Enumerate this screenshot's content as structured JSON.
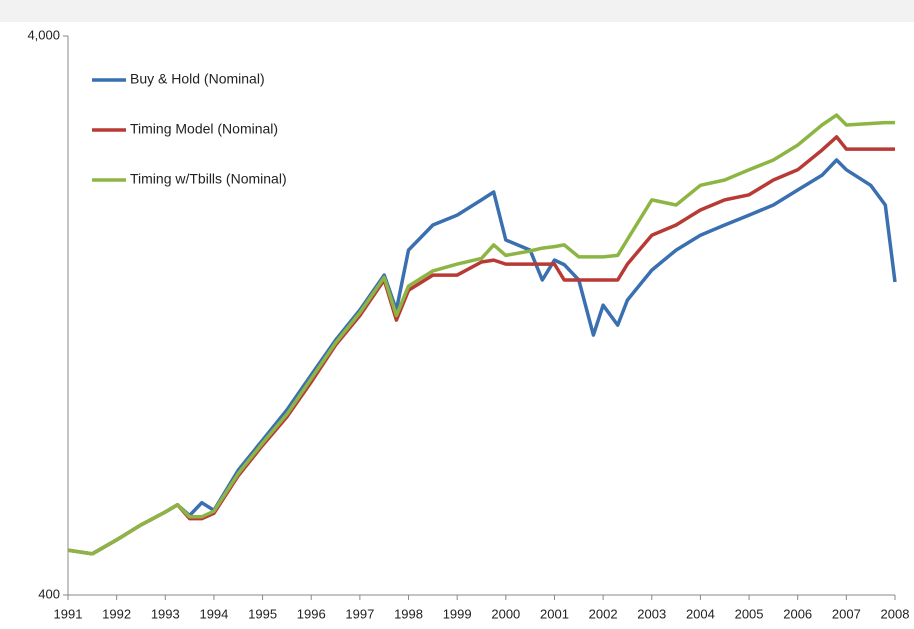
{
  "chart_data": {
    "type": "line",
    "x": [
      1991,
      1991.5,
      1992,
      1992.5,
      1993,
      1993.25,
      1993.5,
      1993.75,
      1994,
      1994.5,
      1995,
      1995.5,
      1996,
      1996.5,
      1997,
      1997.5,
      1997.75,
      1998,
      1998.5,
      1999,
      1999.5,
      1999.75,
      2000,
      2000.5,
      2000.75,
      2001,
      2001.2,
      2001.5,
      2001.8,
      2002,
      2002.3,
      2002.5,
      2003,
      2003.5,
      2004,
      2004.5,
      2005,
      2005.5,
      2006,
      2006.5,
      2006.8,
      2007,
      2007.5,
      2007.8,
      2008
    ],
    "series": [
      {
        "name": "Buy & Hold (Nominal)",
        "color": "#3a6fb0",
        "values": [
          481,
          474,
          502,
          534,
          563,
          580,
          555,
          585,
          567,
          669,
          757,
          857,
          990,
          1143,
          1294,
          1494,
          1294,
          1656,
          1836,
          1913,
          2036,
          2104,
          1726,
          1656,
          1464,
          1589,
          1560,
          1464,
          1167,
          1320,
          1216,
          1348,
          1525,
          1656,
          1761,
          1836,
          1913,
          1994,
          2121,
          2254,
          2400,
          2305,
          2163,
          1994,
          1452
        ]
      },
      {
        "name": "Timing Model (Nominal)",
        "color": "#b83a35",
        "values": [
          481,
          474,
          502,
          534,
          563,
          580,
          548,
          548,
          560,
          654,
          741,
          833,
          962,
          1120,
          1265,
          1464,
          1241,
          1403,
          1494,
          1494,
          1577,
          1589,
          1563,
          1563,
          1563,
          1563,
          1464,
          1464,
          1464,
          1464,
          1464,
          1563,
          1761,
          1836,
          1953,
          2036,
          2080,
          2210,
          2305,
          2500,
          2640,
          2510,
          2510,
          2510,
          2510
        ]
      },
      {
        "name": "Timing w/Tbills (Nominal)",
        "color": "#8db544",
        "values": [
          481,
          474,
          502,
          534,
          563,
          580,
          552,
          552,
          565,
          660,
          748,
          842,
          975,
          1130,
          1280,
          1480,
          1265,
          1428,
          1520,
          1563,
          1600,
          1692,
          1620,
          1650,
          1670,
          1680,
          1692,
          1610,
          1610,
          1610,
          1620,
          1730,
          2036,
          1994,
          2163,
          2210,
          2305,
          2400,
          2552,
          2772,
          2888,
          2772,
          2790,
          2800,
          2800
        ]
      }
    ],
    "xlim": [
      1991,
      2008
    ],
    "xticks": [
      1991,
      1992,
      1993,
      1994,
      1995,
      1996,
      1997,
      1998,
      1999,
      2000,
      2001,
      2002,
      2003,
      2004,
      2005,
      2006,
      2007,
      2008
    ],
    "ylim": [
      400,
      4000
    ],
    "yticks": [
      400,
      {
        "value": 4000,
        "label": "4,000"
      }
    ],
    "log_scale": true,
    "grid": false,
    "legend": "top-left"
  }
}
